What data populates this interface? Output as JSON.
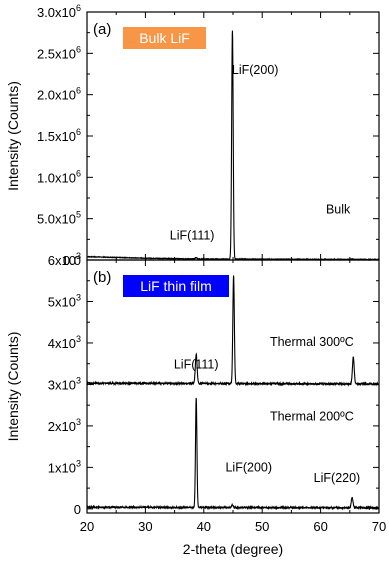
{
  "chart_data": [
    {
      "panel_label": "(a)",
      "type": "line",
      "badge": "Bulk LiF",
      "badge_color": "#f79646",
      "ylabel": "Intensity (Counts)",
      "xlim": [
        20,
        70
      ],
      "ylim": [
        0,
        3000000
      ],
      "y_ticks": [
        0,
        500000,
        1000000,
        1500000,
        2000000,
        2500000,
        3000000
      ],
      "y_tick_labels": [
        {
          "mant": "0.0",
          "exp": ""
        },
        {
          "mant": "5.0x10",
          "exp": "5"
        },
        {
          "mant": "1.0x10",
          "exp": "6"
        },
        {
          "mant": "1.5x10",
          "exp": "6"
        },
        {
          "mant": "2.0x10",
          "exp": "6"
        },
        {
          "mant": "2.5x10",
          "exp": "6"
        },
        {
          "mant": "3.0x10",
          "exp": "6"
        }
      ],
      "series": [
        {
          "name": "Bulk",
          "baseline": [
            [
              20,
              40000
            ],
            [
              30,
              22000
            ],
            [
              40,
              12000
            ],
            [
              70,
              6000
            ]
          ],
          "peaks": [
            {
              "x": 38.7,
              "y": 15000,
              "w": 0.15
            },
            {
              "x": 44.9,
              "y": 2770000,
              "w": 0.13
            },
            {
              "x": 65.4,
              "y": 6000,
              "w": 0.2
            }
          ],
          "noise": 3000
        }
      ],
      "annotations": [
        {
          "text": "LiF(200)",
          "x": 48.8,
          "y": 2250000
        },
        {
          "text": "LiF(111)",
          "x": 38.0,
          "y": 250000
        },
        {
          "text": "Bulk",
          "x": 63.0,
          "y": 560000
        }
      ]
    },
    {
      "panel_label": "(b)",
      "type": "line",
      "badge": "LiF thin film",
      "badge_color": "#0000ff",
      "ylabel": "Intensity (Counts)",
      "xlabel": "2-theta (degree)",
      "xlim": [
        20,
        70
      ],
      "ylim": [
        -100,
        6000
      ],
      "x_ticks": [
        20,
        30,
        40,
        50,
        60,
        70
      ],
      "x_tick_labels": [
        "20",
        "30",
        "40",
        "50",
        "60",
        "70"
      ],
      "y_ticks": [
        0,
        1000,
        2000,
        3000,
        4000,
        5000,
        6000
      ],
      "y_tick_labels": [
        {
          "mant": "0",
          "exp": ""
        },
        {
          "mant": "1x10",
          "exp": "3"
        },
        {
          "mant": "2x10",
          "exp": "3"
        },
        {
          "mant": "3x10",
          "exp": "3"
        },
        {
          "mant": "4x10",
          "exp": "3"
        },
        {
          "mant": "5x10",
          "exp": "3"
        },
        {
          "mant": "6x10",
          "exp": "3"
        }
      ],
      "series": [
        {
          "name": "Thermal 300ºC",
          "baseline": [
            [
              20,
              3030
            ],
            [
              70,
              3010
            ]
          ],
          "peaks": [
            {
              "x": 38.7,
              "y": 700,
              "w": 0.15
            },
            {
              "x": 45.1,
              "y": 2600,
              "w": 0.13
            },
            {
              "x": 65.6,
              "y": 650,
              "w": 0.15
            }
          ],
          "noise": 18
        },
        {
          "name": "Thermal 200ºC",
          "baseline": [
            [
              20,
              40
            ],
            [
              70,
              25
            ]
          ],
          "peaks": [
            {
              "x": 38.7,
              "y": 2650,
              "w": 0.12
            },
            {
              "x": 44.9,
              "y": 60,
              "w": 0.15
            },
            {
              "x": 65.4,
              "y": 250,
              "w": 0.15
            }
          ],
          "noise": 15
        }
      ],
      "annotations": [
        {
          "text": "Thermal 300ºC",
          "x": 58.5,
          "y": 3930
        },
        {
          "text": "LiF(111)",
          "x": 38.7,
          "y": 3380
        },
        {
          "text": "Thermal 200ºC",
          "x": 58.5,
          "y": 2130
        },
        {
          "text": "LiF(200)",
          "x": 47.7,
          "y": 900
        },
        {
          "text": "LiF(220)",
          "x": 62.8,
          "y": 650
        }
      ]
    }
  ]
}
